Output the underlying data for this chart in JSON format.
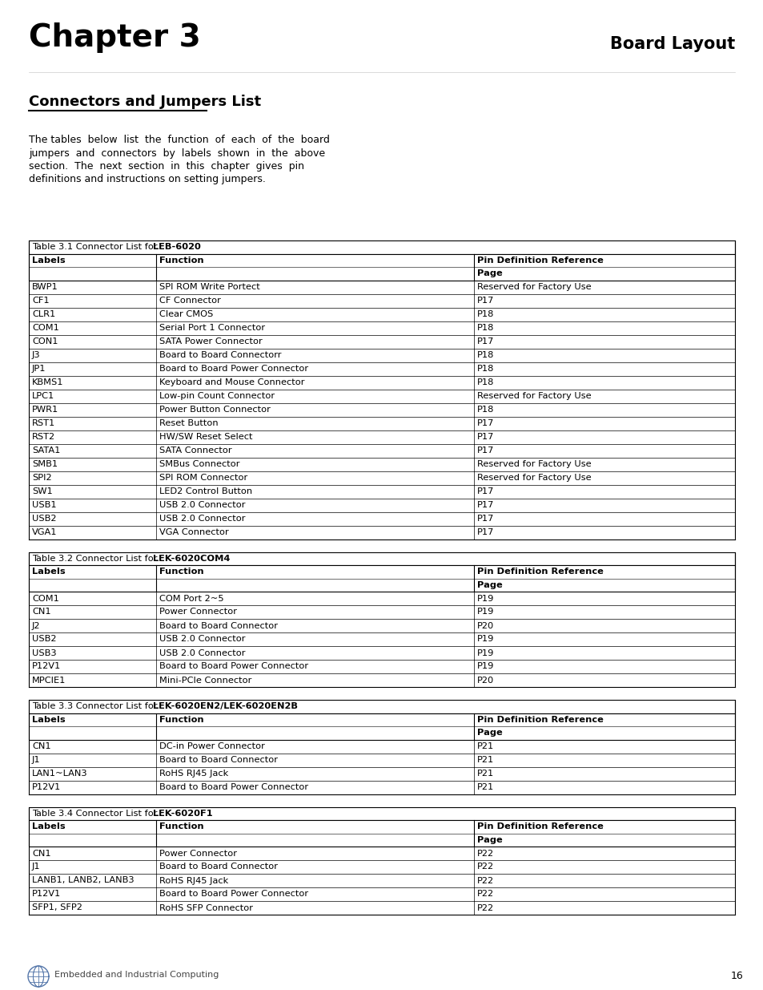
{
  "title": "Chapter 3",
  "title_right": "Board Layout",
  "section_title": "Connectors and Jumpers List",
  "intro_lines": [
    "The tables  below  list  the  function  of  each  of  the  board",
    "jumpers  and  connectors  by  labels  shown  in  the  above",
    "section.  The  next  section  in  this  chapter  gives  pin",
    "definitions and instructions on setting jumpers."
  ],
  "table1_title_plain": "Table 3.1 Connector List for ",
  "table1_title_bold": "LEB-6020",
  "table1_rows": [
    [
      "BWP1",
      "SPI ROM Write Portect",
      "Reserved for Factory Use"
    ],
    [
      "CF1",
      "CF Connector",
      "P17"
    ],
    [
      "CLR1",
      "Clear CMOS",
      "P18"
    ],
    [
      "COM1",
      "Serial Port 1 Connector",
      "P18"
    ],
    [
      "CON1",
      "SATA Power Connector",
      "P17"
    ],
    [
      "J3",
      "Board to Board Connectorr",
      "P18"
    ],
    [
      "JP1",
      "Board to Board Power Connector",
      "P18"
    ],
    [
      "KBMS1",
      "Keyboard and Mouse Connector",
      "P18"
    ],
    [
      "LPC1",
      "Low-pin Count Connector",
      "Reserved for Factory Use"
    ],
    [
      "PWR1",
      "Power Button Connector",
      "P18"
    ],
    [
      "RST1",
      "Reset Button",
      "P17"
    ],
    [
      "RST2",
      "HW/SW Reset Select",
      "P17"
    ],
    [
      "SATA1",
      "SATA Connector",
      "P17"
    ],
    [
      "SMB1",
      "SMBus Connector",
      "Reserved for Factory Use"
    ],
    [
      "SPI2",
      "SPI ROM Connector",
      "Reserved for Factory Use"
    ],
    [
      "SW1",
      "LED2 Control Button",
      "P17"
    ],
    [
      "USB1",
      "USB 2.0 Connector",
      "P17"
    ],
    [
      "USB2",
      "USB 2.0 Connector",
      "P17"
    ],
    [
      "VGA1",
      "VGA Connector",
      "P17"
    ]
  ],
  "table2_title_plain": "Table 3.2 Connector List for ",
  "table2_title_bold": "LEK-6020COM4",
  "table2_rows": [
    [
      "COM1",
      "COM Port 2~5",
      "P19"
    ],
    [
      "CN1",
      "Power Connector",
      "P19"
    ],
    [
      "J2",
      "Board to Board Connector",
      "P20"
    ],
    [
      "USB2",
      "USB 2.0 Connector",
      "P19"
    ],
    [
      "USB3",
      "USB 2.0 Connector",
      "P19"
    ],
    [
      "P12V1",
      "Board to Board Power Connector",
      "P19"
    ],
    [
      "MPCIE1",
      "Mini-PCIe Connector",
      "P20"
    ]
  ],
  "table3_title_plain": "Table 3.3 Connector List for ",
  "table3_title_bold": "LEK-6020EN2/LEK-6020EN2B",
  "table3_rows": [
    [
      "CN1",
      "DC-in Power Connector",
      "P21"
    ],
    [
      "J1",
      "Board to Board Connector",
      "P21"
    ],
    [
      "LAN1~LAN3",
      "RoHS RJ45 Jack",
      "P21"
    ],
    [
      "P12V1",
      "Board to Board Power Connector",
      "P21"
    ]
  ],
  "table4_title_plain": "Table 3.4 Connector List for ",
  "table4_title_bold": "LEK-6020F1",
  "table4_rows": [
    [
      "CN1",
      "Power Connector",
      "P22"
    ],
    [
      "J1",
      "Board to Board Connector",
      "P22"
    ],
    [
      "LANB1, LANB2, LANB3",
      "RoHS RJ45 Jack",
      "P22"
    ],
    [
      "P12V1",
      "Board to Board Power Connector",
      "P22"
    ],
    [
      "SFP1, SFP2",
      "RoHS SFP Connector",
      "P22"
    ]
  ],
  "footer_text": "Embedded and Industrial Computing",
  "page_number": "16",
  "bg_color": "#ffffff"
}
